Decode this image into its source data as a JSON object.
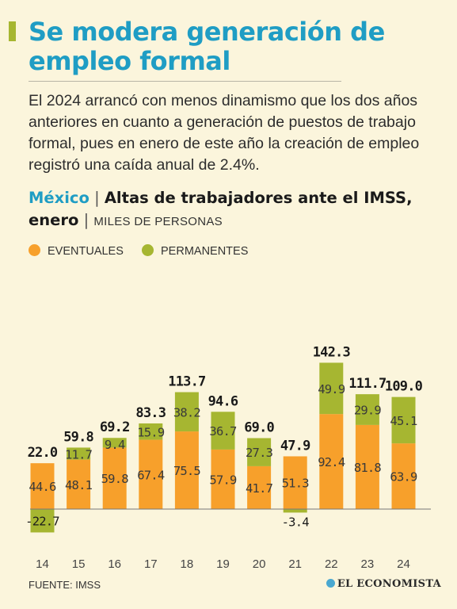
{
  "header": {
    "title": "Se modera generación de empleo formal",
    "subtitle": "El 2024 arrancó con menos dinamismo que los dos años anteriores en cuanto a generación de puestos de trabajo formal, pues en enero de este año la creación de empleo registró una caída anual de 2.4%."
  },
  "chart_heading": {
    "country": "México",
    "separator": "|",
    "title": "Altas de trabajadores ante el IMSS, enero",
    "units": "MILES DE PERSONAS"
  },
  "colors": {
    "eventuales": "#f7a02b",
    "permanentes": "#a6b631",
    "accent": "#1f9dc4",
    "background": "#fbf5dc"
  },
  "chart_data": {
    "type": "bar",
    "stacked": true,
    "categories": [
      "14",
      "15",
      "16",
      "17",
      "18",
      "19",
      "20",
      "21",
      "22",
      "23",
      "24"
    ],
    "series": [
      {
        "name": "EVENTUALES",
        "values": [
          44.6,
          48.1,
          59.8,
          67.4,
          75.5,
          57.9,
          41.7,
          51.3,
          92.4,
          81.8,
          63.9
        ]
      },
      {
        "name": "PERMANENTES",
        "values": [
          -22.7,
          11.7,
          9.4,
          15.9,
          38.2,
          36.7,
          27.3,
          -3.4,
          49.9,
          29.9,
          45.1
        ]
      }
    ],
    "totals": [
      22.0,
      59.8,
      69.2,
      83.3,
      113.7,
      94.6,
      69.0,
      47.9,
      142.3,
      111.7,
      109.0
    ],
    "ylim": [
      -30,
      145
    ],
    "grid": false,
    "legend_position": "top-left"
  },
  "source": "FUENTE: IMSS",
  "logo": "EL ECONOMISTA"
}
